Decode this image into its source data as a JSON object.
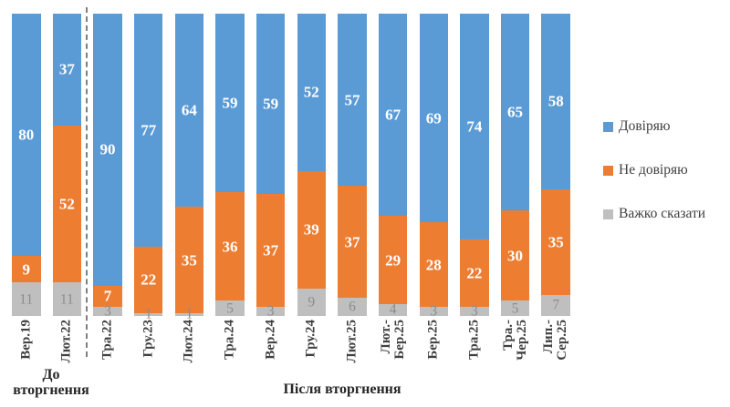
{
  "legend": {
    "items": [
      {
        "label": "Довіряю",
        "color": "#5B9BD5"
      },
      {
        "label": "Не довіряю",
        "color": "#ED7D31"
      },
      {
        "label": "Важко сказати",
        "color": "#BFBFBF"
      }
    ]
  },
  "chart_data": {
    "type": "bar",
    "subtype": "stacked-100-percent",
    "title": "",
    "xlabel": "",
    "ylabel": "",
    "ylim": [
      0,
      100
    ],
    "grid": false,
    "legend_position": "right",
    "categories": [
      "Вер.19",
      "Лют.22",
      "Тра.22",
      "Гру.23",
      "Лют.24",
      "Тра.24",
      "Вер.24",
      "Гру.24",
      "Лют.25",
      "Лют.-\nБер.25",
      "Бер.25",
      "Тра.25",
      "Тра.-\nЧер.25",
      "Лип.-\nСер.25"
    ],
    "series": [
      {
        "name": "Довіряю",
        "color": "#5B9BD5",
        "label_color": "#FFFFFF",
        "values": [
          80,
          37,
          90,
          77,
          64,
          59,
          59,
          52,
          57,
          67,
          69,
          74,
          65,
          58
        ]
      },
      {
        "name": "Не довіряю",
        "color": "#ED7D31",
        "label_color": "#FFFFFF",
        "values": [
          9,
          52,
          7,
          22,
          35,
          36,
          37,
          39,
          37,
          29,
          28,
          22,
          30,
          35
        ]
      },
      {
        "name": "Важко сказати",
        "color": "#BFBFBF",
        "label_color": "#8C8C8C",
        "values": [
          11,
          11,
          3,
          1,
          1,
          5,
          3,
          9,
          6,
          4,
          3,
          3,
          5,
          7
        ]
      }
    ],
    "separator_after_category_index": 1,
    "group_labels": [
      {
        "label": "До вторгнення",
        "category_range": [
          0,
          1
        ]
      },
      {
        "label": "Після вторгнення",
        "category_range": [
          2,
          13
        ]
      }
    ]
  }
}
